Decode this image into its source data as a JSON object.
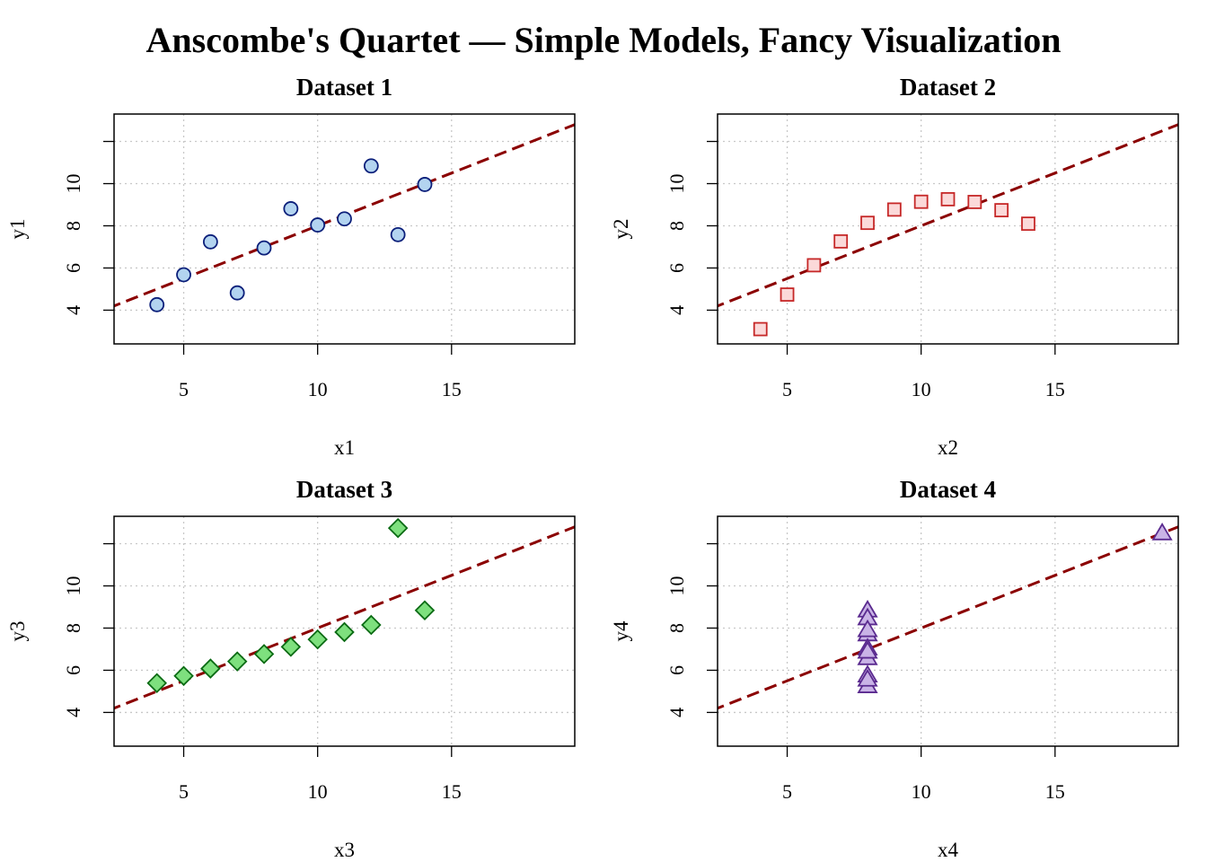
{
  "figure": {
    "title": "Anscombe's Quartet — Simple Models, Fancy Visualization"
  },
  "colors": {
    "fit_line": "#8b0000",
    "grid": "#c8c8c8"
  },
  "chart_data": [
    {
      "type": "scatter",
      "title": "Dataset 1",
      "xlabel": "x1",
      "ylabel": "y1",
      "xlim": [
        2.4,
        19.6
      ],
      "ylim": [
        2.4,
        13.3
      ],
      "x_ticks": [
        5,
        10,
        15
      ],
      "y_ticks": [
        4,
        6,
        8,
        10
      ],
      "grid": true,
      "marker": "circle",
      "marker_fill": "#b3d4f0",
      "marker_edge": "#0b1f7a",
      "x": [
        10,
        8,
        13,
        9,
        11,
        14,
        6,
        4,
        12,
        7,
        5
      ],
      "y": [
        8.04,
        6.95,
        7.58,
        8.81,
        8.33,
        9.96,
        7.24,
        4.26,
        10.84,
        4.82,
        5.68
      ],
      "fit": {
        "intercept": 3.0,
        "slope": 0.5
      }
    },
    {
      "type": "scatter",
      "title": "Dataset 2",
      "xlabel": "x2",
      "ylabel": "y2",
      "xlim": [
        2.4,
        19.6
      ],
      "ylim": [
        2.4,
        13.3
      ],
      "x_ticks": [
        5,
        10,
        15
      ],
      "y_ticks": [
        4,
        6,
        8,
        10
      ],
      "grid": true,
      "marker": "square",
      "marker_fill": "#fbd9d9",
      "marker_edge": "#c62828",
      "x": [
        10,
        8,
        13,
        9,
        11,
        14,
        6,
        4,
        12,
        7,
        5
      ],
      "y": [
        9.14,
        8.14,
        8.74,
        8.77,
        9.26,
        8.1,
        6.13,
        3.1,
        9.13,
        7.26,
        4.74
      ],
      "fit": {
        "intercept": 3.0,
        "slope": 0.5
      }
    },
    {
      "type": "scatter",
      "title": "Dataset 3",
      "xlabel": "x3",
      "ylabel": "y3",
      "xlim": [
        2.4,
        19.6
      ],
      "ylim": [
        2.4,
        13.3
      ],
      "x_ticks": [
        5,
        10,
        15
      ],
      "y_ticks": [
        4,
        6,
        8,
        10
      ],
      "grid": true,
      "marker": "diamond",
      "marker_fill": "#7ee07e",
      "marker_edge": "#0b6b14",
      "x": [
        10,
        8,
        13,
        9,
        11,
        14,
        6,
        4,
        12,
        7,
        5
      ],
      "y": [
        7.46,
        6.77,
        12.74,
        7.11,
        7.81,
        8.84,
        6.08,
        5.39,
        8.15,
        6.42,
        5.73
      ],
      "fit": {
        "intercept": 3.0,
        "slope": 0.5
      }
    },
    {
      "type": "scatter",
      "title": "Dataset 4",
      "xlabel": "x4",
      "ylabel": "y4",
      "xlim": [
        2.4,
        19.6
      ],
      "ylim": [
        2.4,
        13.3
      ],
      "x_ticks": [
        5,
        10,
        15
      ],
      "y_ticks": [
        4,
        6,
        8,
        10
      ],
      "grid": true,
      "marker": "triangle",
      "marker_fill": "#c9b3e6",
      "marker_edge": "#5a2a8f",
      "x": [
        8,
        8,
        8,
        8,
        8,
        8,
        8,
        19,
        8,
        8,
        8
      ],
      "y": [
        6.58,
        5.76,
        7.71,
        8.84,
        8.47,
        7.04,
        5.25,
        12.5,
        5.56,
        7.91,
        6.89
      ],
      "fit": {
        "intercept": 3.0,
        "slope": 0.5
      }
    }
  ]
}
